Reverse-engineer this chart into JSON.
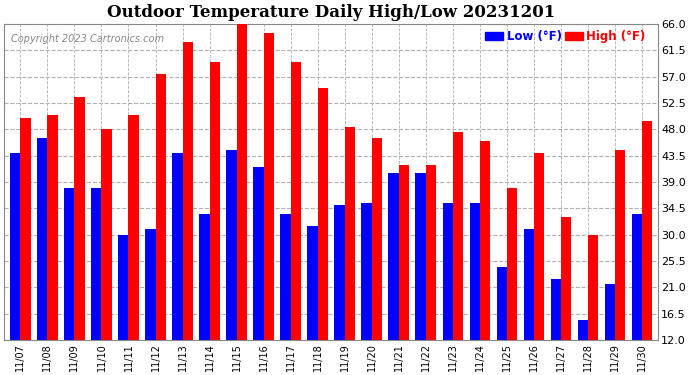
{
  "title": "Outdoor Temperature Daily High/Low 20231201",
  "copyright": "Copyright 2023 Cartronics.com",
  "legend_low": "Low",
  "legend_high": "High",
  "legend_unit": "(°F)",
  "dates": [
    "11/07",
    "11/08",
    "11/09",
    "11/10",
    "11/11",
    "11/12",
    "11/13",
    "11/14",
    "11/15",
    "11/16",
    "11/17",
    "11/18",
    "11/19",
    "11/20",
    "11/21",
    "11/22",
    "11/23",
    "11/24",
    "11/25",
    "11/26",
    "11/27",
    "11/28",
    "11/29",
    "11/30"
  ],
  "highs": [
    50.0,
    50.5,
    53.5,
    48.0,
    50.5,
    57.5,
    63.0,
    59.5,
    66.0,
    64.5,
    59.5,
    55.0,
    48.5,
    46.5,
    42.0,
    42.0,
    47.5,
    46.0,
    38.0,
    44.0,
    33.0,
    30.0,
    44.5,
    49.5
  ],
  "lows": [
    44.0,
    46.5,
    38.0,
    38.0,
    30.0,
    31.0,
    44.0,
    33.5,
    44.5,
    41.5,
    33.5,
    31.5,
    35.0,
    35.5,
    40.5,
    40.5,
    35.5,
    35.5,
    24.5,
    31.0,
    22.5,
    15.5,
    21.5,
    33.5
  ],
  "low_color": "#0000ff",
  "high_color": "#ff0000",
  "bg_color": "#ffffff",
  "grid_color": "#b0b0b0",
  "ylim_min": 12.0,
  "ylim_max": 66.0,
  "yticks": [
    12.0,
    16.5,
    21.0,
    25.5,
    30.0,
    34.5,
    39.0,
    43.5,
    48.0,
    52.5,
    57.0,
    61.5,
    66.0
  ],
  "bar_width": 0.38
}
